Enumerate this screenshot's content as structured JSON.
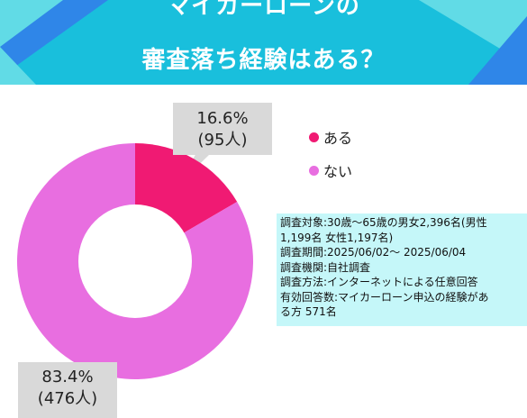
{
  "header": {
    "title_line1": "マイカーローンの",
    "title_line2": "審査落ち経験はある？",
    "colors": {
      "band": "#19bfdc",
      "shape_light": "#61dbe6",
      "shape_blue": "#2f86e8"
    }
  },
  "chart_data": {
    "type": "pie",
    "style": "donut",
    "slices": [
      {
        "label": "ある",
        "percent": 16.6,
        "count_label": "(95人)",
        "percent_label": "16.6%",
        "color": "#f01a73"
      },
      {
        "label": "ない",
        "percent": 83.4,
        "count_label": "(476人)",
        "percent_label": "83.4%",
        "color": "#e86ee0"
      }
    ],
    "legend_position": "right"
  },
  "survey_info": [
    "調査対象:30歳〜65歳の男女2,396名(男性",
    "1,199名 女性1,197名)",
    "調査期間:2025/06/02〜 2025/06/04",
    "調査機関:自社調査",
    "調査方法:インターネットによる任意回答",
    "有効回答数:マイカーローン申込の経験があ",
    "る方 571名"
  ]
}
